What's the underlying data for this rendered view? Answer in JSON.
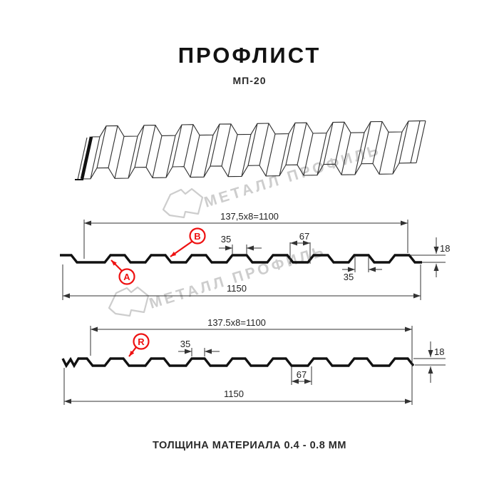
{
  "header": {
    "title": "ПРОФЛИСТ",
    "subtitle": "МП-20"
  },
  "footer": {
    "note": "ТОЛЩИНА МАТЕРИАЛА 0.4 - 0.8 ММ"
  },
  "watermark": {
    "text": "МЕТАЛЛ ПРОФИЛЬ"
  },
  "colors": {
    "accent_red": "#ee1111",
    "watermark_gray": "#cdcdcd",
    "ink": "#1a1a1a",
    "dim_line": "#333333"
  },
  "profile_a": {
    "width_dim": "137,5x8=1100",
    "overall_dim": "1150",
    "rib_top_dim": "35",
    "valley_dim": "67",
    "height_dim": "18",
    "rib_bottom_dim": "35",
    "label_a": "А",
    "label_b": "В"
  },
  "profile_r": {
    "width_dim": "137.5x8=1100",
    "overall_dim": "1150",
    "rib_top_dim": "35",
    "valley_dim": "67",
    "height_dim": "18",
    "label_r": "R"
  }
}
